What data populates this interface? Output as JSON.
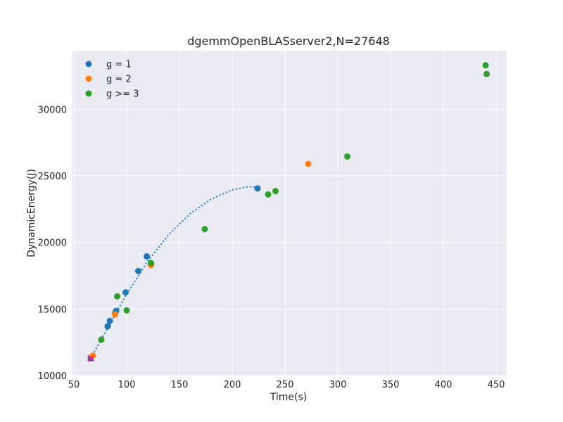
{
  "chart_data": {
    "type": "scatter",
    "title": "dgemmOpenBLASserver2,N=27648",
    "xlabel": "Time(s)",
    "ylabel": "DynamicEnergy(J)",
    "xlim": [
      48,
      460
    ],
    "ylim": [
      10000,
      34400
    ],
    "xticks": [
      50,
      100,
      150,
      200,
      250,
      300,
      350,
      400,
      450
    ],
    "yticks": [
      10000,
      15000,
      20000,
      25000,
      30000
    ],
    "grid": true,
    "background": "#eaeaf2",
    "legend": {
      "placement": "top-left"
    },
    "series": [
      {
        "name": "g = 1",
        "color": "#1f77b4",
        "points": [
          {
            "x": 66,
            "y": 11300
          },
          {
            "x": 82,
            "y": 13700
          },
          {
            "x": 84,
            "y": 14100
          },
          {
            "x": 89,
            "y": 14700
          },
          {
            "x": 90,
            "y": 14850
          },
          {
            "x": 99,
            "y": 16250
          },
          {
            "x": 111,
            "y": 17850
          },
          {
            "x": 119,
            "y": 18950
          },
          {
            "x": 224,
            "y": 24050
          }
        ]
      },
      {
        "name": "g = 2",
        "color": "#ff7f0e",
        "points": [
          {
            "x": 68,
            "y": 11500
          },
          {
            "x": 76,
            "y": 12700
          },
          {
            "x": 89,
            "y": 14600
          },
          {
            "x": 123,
            "y": 18300
          },
          {
            "x": 272,
            "y": 25900
          }
        ]
      },
      {
        "name": "g >= 3",
        "color": "#2ca02c",
        "points": [
          {
            "x": 76,
            "y": 12700
          },
          {
            "x": 91,
            "y": 15950
          },
          {
            "x": 100,
            "y": 14900
          },
          {
            "x": 123,
            "y": 18450
          },
          {
            "x": 174,
            "y": 21000
          },
          {
            "x": 234,
            "y": 23600
          },
          {
            "x": 241,
            "y": 23850
          },
          {
            "x": 309,
            "y": 26450
          },
          {
            "x": 440,
            "y": 33300
          },
          {
            "x": 441,
            "y": 32650
          }
        ]
      }
    ],
    "fit_curve": {
      "color": "#1f77b4",
      "style": "dotted",
      "points": [
        [
          66,
          11300
        ],
        [
          80,
          13300
        ],
        [
          100,
          16100
        ],
        [
          120,
          18600
        ],
        [
          140,
          20600
        ],
        [
          160,
          22150
        ],
        [
          180,
          23250
        ],
        [
          200,
          23950
        ],
        [
          215,
          24180
        ],
        [
          225,
          24150
        ]
      ]
    },
    "marker": {
      "x": 66,
      "y": 11300,
      "color": "#e31a8c",
      "shape": "x"
    }
  }
}
